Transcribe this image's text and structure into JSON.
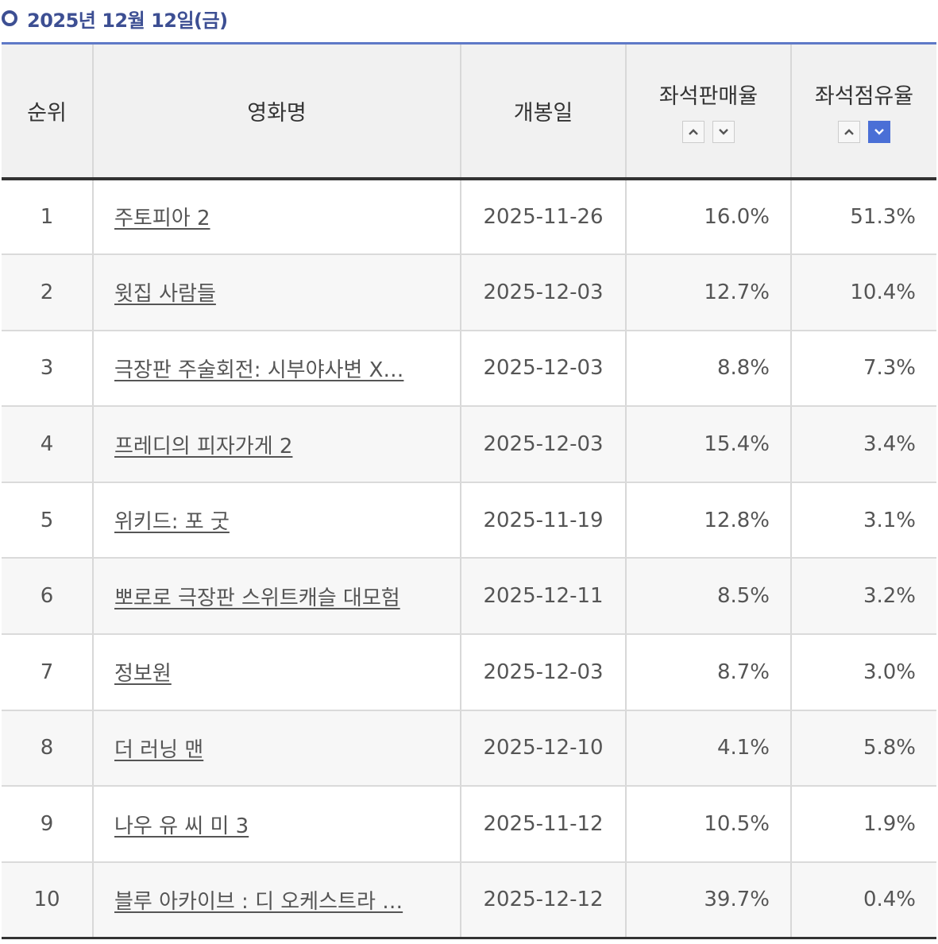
{
  "header": {
    "date": "2025년 12월 12일(금)"
  },
  "table": {
    "columns": {
      "rank": "순위",
      "title": "영화명",
      "release": "개봉일",
      "sales": "좌석판매율",
      "share": "좌석점유율"
    },
    "sort": {
      "sales_active": "none",
      "share_active": "desc",
      "active_color": "#4a6fd6"
    },
    "rows": [
      {
        "rank": "1",
        "title": "주토피아 2",
        "release": "2025-11-26",
        "sales": "16.0%",
        "share": "51.3%"
      },
      {
        "rank": "2",
        "title": "윗집 사람들",
        "release": "2025-12-03",
        "sales": "12.7%",
        "share": "10.4%"
      },
      {
        "rank": "3",
        "title": "극장판 주술회전: 시부야사변 X…",
        "release": "2025-12-03",
        "sales": "8.8%",
        "share": "7.3%"
      },
      {
        "rank": "4",
        "title": "프레디의 피자가게 2",
        "release": "2025-12-03",
        "sales": "15.4%",
        "share": "3.4%"
      },
      {
        "rank": "5",
        "title": "위키드: 포 굿",
        "release": "2025-11-19",
        "sales": "12.8%",
        "share": "3.1%"
      },
      {
        "rank": "6",
        "title": "뽀로로 극장판 스위트캐슬 대모험",
        "release": "2025-12-11",
        "sales": "8.5%",
        "share": "3.2%"
      },
      {
        "rank": "7",
        "title": "정보원",
        "release": "2025-12-03",
        "sales": "8.7%",
        "share": "3.0%"
      },
      {
        "rank": "8",
        "title": "더 러닝 맨",
        "release": "2025-12-10",
        "sales": "4.1%",
        "share": "5.8%"
      },
      {
        "rank": "9",
        "title": "나우 유 씨 미 3",
        "release": "2025-11-12",
        "sales": "10.5%",
        "share": "1.9%"
      },
      {
        "rank": "10",
        "title": "블루 아카이브 : 디 오케스트라 …",
        "release": "2025-12-12",
        "sales": "39.7%",
        "share": "0.4%"
      }
    ]
  }
}
